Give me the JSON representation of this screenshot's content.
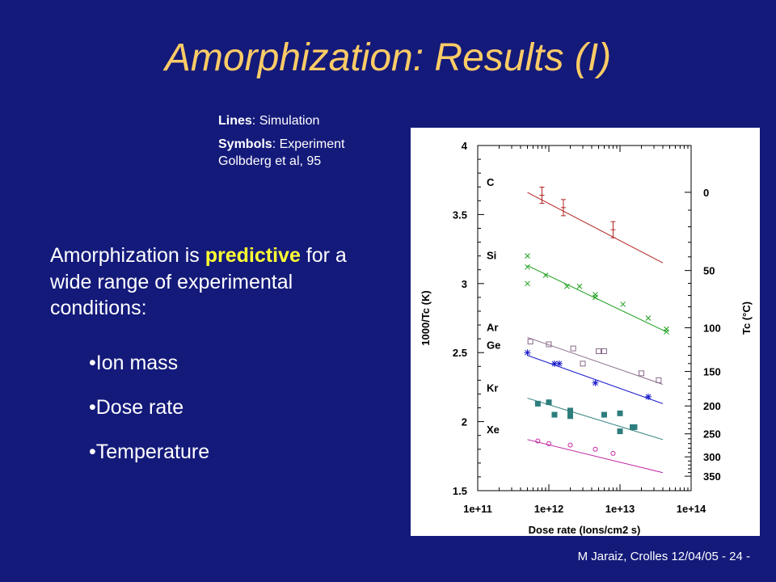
{
  "slide": {
    "title": "Amorphization: Results (I)",
    "legend_lines_label": "Lines",
    "legend_lines_text": ": Simulation",
    "legend_symbols_label": "Symbols",
    "legend_symbols_text": ": Experiment",
    "legend_ref": "Golbderg et al, 95",
    "body_pre": "Amorphization is ",
    "body_highlight": "predictive",
    "body_post": " for a wide range of experimental conditions:",
    "bullets": [
      "•Ion mass",
      "•Dose rate",
      "•Temperature"
    ],
    "footer": "M Jaraiz, Crolles 12/04/05    - 24 -"
  },
  "chart_data": {
    "type": "scatter",
    "title": "",
    "xlabel": "Dose rate (Ions/cm2 s)",
    "ylabel": "1000/Tc (K)",
    "y2label": "Tc (°C)",
    "x_scale": "log",
    "xlim": [
      100000000000.0,
      100000000000000.0
    ],
    "ylim": [
      1.5,
      4
    ],
    "x_ticks": [
      "1e+11",
      "1e+12",
      "1e+13",
      "1e+14"
    ],
    "y_ticks": [
      "1.5",
      "2",
      "2.5",
      "3",
      "3.5",
      "4"
    ],
    "y2_ticks": [
      "0",
      "50",
      "100",
      "150",
      "200",
      "250",
      "300",
      "350"
    ],
    "colors": {
      "C": "#b22222",
      "Si": "#1a9e1a",
      "Ar": "#8a6a8a",
      "Ge": "#1a1acc",
      "Kr": "#2e7d7d",
      "Xe": "#c020a0"
    },
    "series": [
      {
        "name": "C",
        "marker": "errorbar",
        "line": [
          [
            500000000000.0,
            3.66
          ],
          [
            40000000000000.0,
            3.15
          ]
        ],
        "points": [
          [
            800000000000.0,
            3.64
          ],
          [
            1600000000000.0,
            3.55
          ],
          [
            8000000000000.0,
            3.39
          ]
        ]
      },
      {
        "name": "Si",
        "marker": "x",
        "line": [
          [
            500000000000.0,
            3.13
          ],
          [
            45000000000000.0,
            2.65
          ]
        ],
        "points": [
          [
            500000000000.0,
            3.12
          ],
          [
            500000000000.0,
            3.2
          ],
          [
            500000000000.0,
            3.0
          ],
          [
            900000000000.0,
            3.06
          ],
          [
            1800000000000.0,
            2.98
          ],
          [
            2700000000000.0,
            2.98
          ],
          [
            4500000000000.0,
            2.92
          ],
          [
            4500000000000.0,
            2.9
          ],
          [
            11000000000000.0,
            2.85
          ],
          [
            25000000000000.0,
            2.75
          ],
          [
            45000000000000.0,
            2.67
          ],
          [
            45000000000000.0,
            2.65
          ]
        ]
      },
      {
        "name": "Ar",
        "marker": "square",
        "line": [
          [
            500000000000.0,
            2.61
          ],
          [
            40000000000000.0,
            2.27
          ]
        ],
        "points": [
          [
            550000000000.0,
            2.58
          ],
          [
            1000000000000.0,
            2.56
          ],
          [
            2200000000000.0,
            2.53
          ],
          [
            5000000000000.0,
            2.51
          ],
          [
            6000000000000.0,
            2.51
          ],
          [
            3000000000000.0,
            2.42
          ],
          [
            20000000000000.0,
            2.35
          ],
          [
            35000000000000.0,
            2.3
          ]
        ]
      },
      {
        "name": "Ge",
        "marker": "asterisk",
        "line": [
          [
            500000000000.0,
            2.48
          ],
          [
            40000000000000.0,
            2.13
          ]
        ],
        "points": [
          [
            500000000000.0,
            2.5
          ],
          [
            1200000000000.0,
            2.42
          ],
          [
            1400000000000.0,
            2.42
          ],
          [
            4500000000000.0,
            2.28
          ],
          [
            25000000000000.0,
            2.18
          ]
        ]
      },
      {
        "name": "Kr",
        "marker": "filled-square",
        "line": [
          [
            500000000000.0,
            2.17
          ],
          [
            40000000000000.0,
            1.87
          ]
        ],
        "points": [
          [
            700000000000.0,
            2.13
          ],
          [
            1000000000000.0,
            2.14
          ],
          [
            2000000000000.0,
            2.08
          ],
          [
            1200000000000.0,
            2.05
          ],
          [
            2000000000000.0,
            2.04
          ],
          [
            6000000000000.0,
            2.05
          ],
          [
            10000000000000.0,
            2.06
          ],
          [
            15000000000000.0,
            1.96
          ],
          [
            16000000000000.0,
            1.96
          ],
          [
            10000000000000.0,
            1.93
          ]
        ]
      },
      {
        "name": "Xe",
        "marker": "circle",
        "line": [
          [
            500000000000.0,
            1.87
          ],
          [
            40000000000000.0,
            1.63
          ]
        ],
        "points": [
          [
            700000000000.0,
            1.86
          ],
          [
            1000000000000.0,
            1.84
          ],
          [
            2000000000000.0,
            1.83
          ],
          [
            4500000000000.0,
            1.8
          ],
          [
            8000000000000.0,
            1.77
          ]
        ]
      }
    ]
  }
}
